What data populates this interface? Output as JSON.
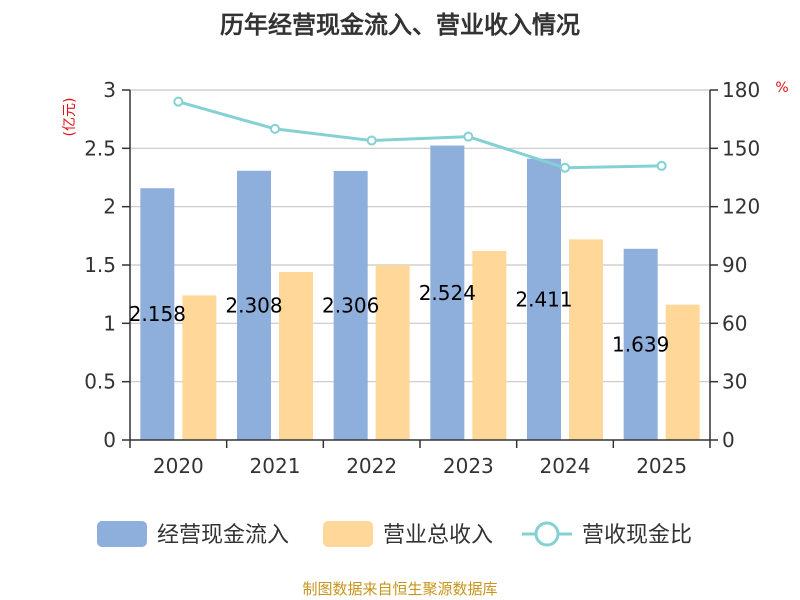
{
  "chart_data": {
    "type": "bar",
    "title": "历年经营现金流入、营业收入情况",
    "categories": [
      "2020",
      "2021",
      "2022",
      "2023",
      "2024",
      "2025"
    ],
    "series": [
      {
        "name": "经营现金流入",
        "kind": "bar",
        "axis": "left",
        "color": "#8eaedb",
        "values": [
          2.158,
          2.308,
          2.306,
          2.524,
          2.411,
          1.639
        ],
        "labels": [
          "2.158",
          "2.308",
          "2.306",
          "2.524",
          "2.411",
          "1.639"
        ]
      },
      {
        "name": "营业总收入",
        "kind": "bar",
        "axis": "left",
        "color": "#ffd899",
        "values": [
          1.24,
          1.44,
          1.5,
          1.62,
          1.72,
          1.16
        ]
      },
      {
        "name": "营收现金比",
        "kind": "line",
        "axis": "right",
        "color": "#84d1d4",
        "values": [
          174,
          160,
          154,
          156,
          140,
          141
        ]
      }
    ],
    "y_left": {
      "unit": "(亿元)",
      "min": 0,
      "max": 3,
      "ticks": [
        "0",
        "0.5",
        "1",
        "1.5",
        "2",
        "2.5",
        "3"
      ]
    },
    "y_right": {
      "unit": "%",
      "min": 0,
      "max": 180,
      "ticks": [
        "0",
        "30",
        "60",
        "90",
        "120",
        "150",
        "180"
      ]
    },
    "grid": true,
    "legend_position": "bottom"
  },
  "footer": "制图数据来自恒生聚源数据库"
}
